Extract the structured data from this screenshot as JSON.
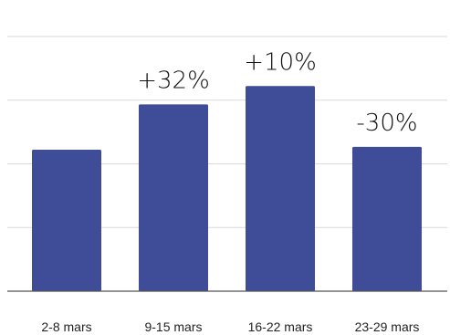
{
  "chart_data": {
    "type": "bar",
    "categories": [
      "2-8 mars",
      "9-15 mars",
      "16-22 mars",
      "23-29 mars"
    ],
    "values": [
      100,
      132,
      145,
      102
    ],
    "data_labels": [
      "",
      "+32%",
      "+10%",
      "-30%"
    ],
    "ylim": [
      0,
      180
    ],
    "grid": true,
    "bar_color": "#3f4c98",
    "title": "",
    "xlabel": "",
    "ylabel": ""
  }
}
